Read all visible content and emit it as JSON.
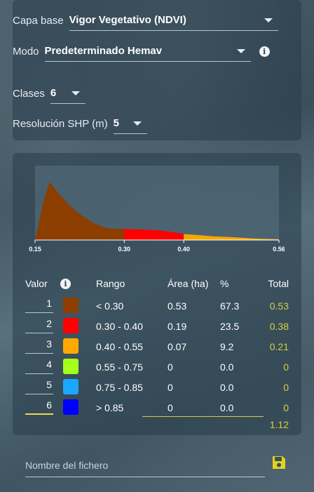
{
  "controls": {
    "base_layer": {
      "label": "Capa base",
      "value": "Vigor Vegetativo (NDVI)"
    },
    "mode": {
      "label": "Modo",
      "value": "Predeterminado Hemav",
      "info_icon": "info-icon"
    },
    "classes": {
      "label": "Clases",
      "value": "6"
    },
    "resolution": {
      "label": "Resolución SHP (m)",
      "value": "5"
    }
  },
  "chart_data": {
    "type": "area",
    "x_ticks": [
      "0.15",
      "0.30",
      "0.40",
      "0.56"
    ],
    "xlim": [
      0.15,
      0.56
    ],
    "segments": [
      {
        "from": 0.15,
        "to": 0.3,
        "color": "#8b3e00"
      },
      {
        "from": 0.3,
        "to": 0.4,
        "color": "#ff0000"
      },
      {
        "from": 0.4,
        "to": 0.56,
        "color": "#f5a800"
      }
    ],
    "curve": [
      [
        0.15,
        0.0
      ],
      [
        0.165,
        0.55
      ],
      [
        0.175,
        0.78
      ],
      [
        0.19,
        0.62
      ],
      [
        0.21,
        0.45
      ],
      [
        0.23,
        0.32
      ],
      [
        0.25,
        0.22
      ],
      [
        0.27,
        0.16
      ],
      [
        0.29,
        0.15
      ],
      [
        0.3,
        0.15
      ],
      [
        0.33,
        0.14
      ],
      [
        0.36,
        0.13
      ],
      [
        0.38,
        0.11
      ],
      [
        0.4,
        0.08
      ],
      [
        0.42,
        0.07
      ],
      [
        0.45,
        0.05
      ],
      [
        0.48,
        0.04
      ],
      [
        0.52,
        0.02
      ],
      [
        0.56,
        0.01
      ]
    ],
    "grid": false
  },
  "table": {
    "headers": {
      "value": "Valor",
      "range": "Rango",
      "area": "Área (ha)",
      "percent": "%",
      "total": "Total"
    },
    "rows": [
      {
        "cls": "1",
        "color": "#8b3e00",
        "range": "< 0.30",
        "area": "0.53",
        "percent": "67.3",
        "total": "0.53",
        "total_color": "#d6cf3c"
      },
      {
        "cls": "2",
        "color": "#ff0000",
        "range": "0.30 - 0.40",
        "area": "0.19",
        "percent": "23.5",
        "total": "0.38",
        "total_color": "#d6cf3c"
      },
      {
        "cls": "3",
        "color": "#ffaa00",
        "range": "0.40 - 0.55",
        "area": "0.07",
        "percent": "9.2",
        "total": "0.21",
        "total_color": "#d6cf3c"
      },
      {
        "cls": "4",
        "color": "#a6ff1a",
        "range": "0.55 - 0.75",
        "area": "0",
        "percent": "0.0",
        "total": "0",
        "total_color": "#d6cf3c"
      },
      {
        "cls": "5",
        "color": "#1aa8ff",
        "range": "0.75 - 0.85",
        "area": "0",
        "percent": "0.0",
        "total": "0",
        "total_color": "#d6cf3c"
      },
      {
        "cls": "6",
        "color": "#0000ff",
        "range": "> 0.85",
        "area": "0",
        "percent": "0.0",
        "total": "0",
        "total_color": "#d6cf3c"
      }
    ],
    "sum_total": "1.12"
  },
  "export": {
    "filename_placeholder": "Nombre del fichero",
    "save_icon": "save-icon",
    "save_color": "#e2d21e"
  }
}
